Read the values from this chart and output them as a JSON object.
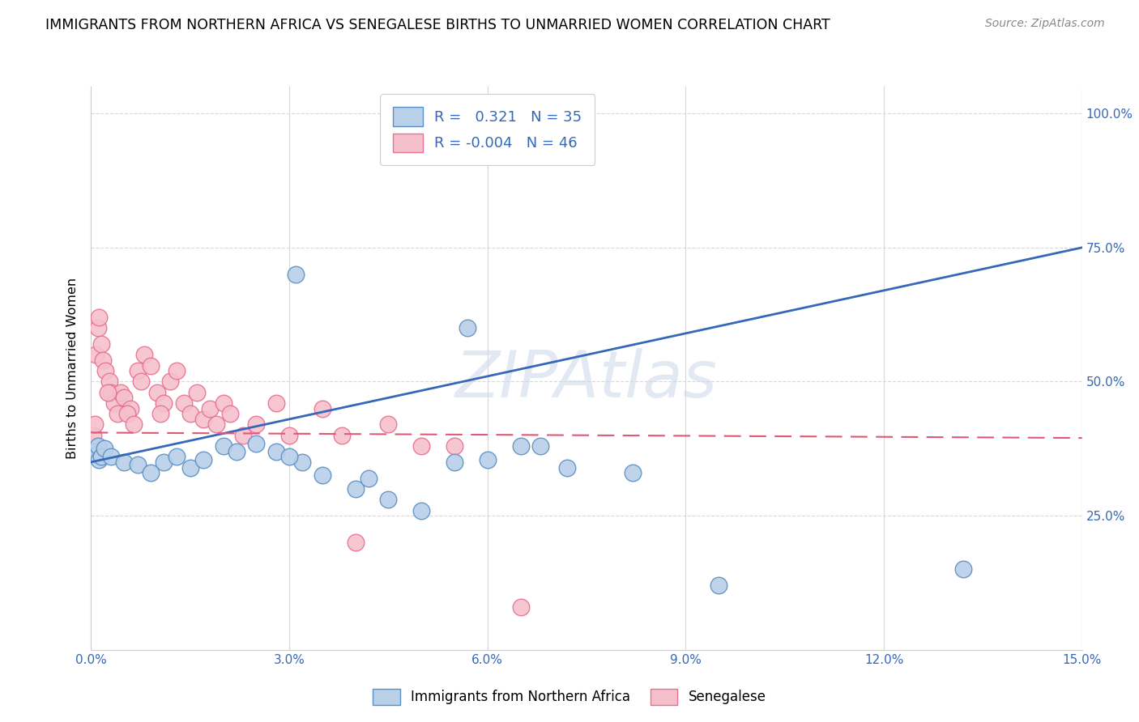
{
  "title": "IMMIGRANTS FROM NORTHERN AFRICA VS SENEGALESE BIRTHS TO UNMARRIED WOMEN CORRELATION CHART",
  "source": "Source: ZipAtlas.com",
  "ylabel": "Births to Unmarried Women",
  "x_tick_vals": [
    0.0,
    3.0,
    6.0,
    9.0,
    12.0,
    15.0
  ],
  "y_tick_vals": [
    25.0,
    50.0,
    75.0,
    100.0
  ],
  "xlim": [
    0.0,
    15.0
  ],
  "ylim": [
    0.0,
    105.0
  ],
  "legend_labels": [
    "Immigrants from Northern Africa",
    "Senegalese"
  ],
  "R_blue": 0.321,
  "N_blue": 35,
  "R_pink": -0.004,
  "N_pink": 46,
  "blue_color": "#b8d0e8",
  "blue_edge_color": "#5b8fc4",
  "blue_line_color": "#3568b8",
  "pink_color": "#f5c0cc",
  "pink_edge_color": "#e87090",
  "pink_line_color": "#e05878",
  "background_color": "#ffffff",
  "grid_color": "#d8d8d8",
  "watermark": "ZIPAtlas",
  "watermark_color": "#ccd8e8",
  "title_fontsize": 12.5,
  "source_fontsize": 10,
  "blue_trend_y0": 35.0,
  "blue_trend_y1": 75.0,
  "pink_trend_y0": 40.5,
  "pink_trend_y1": 39.5,
  "blue_scatter_x": [
    0.05,
    0.08,
    0.1,
    0.12,
    0.15,
    0.2,
    0.3,
    0.5,
    0.7,
    0.9,
    1.1,
    1.3,
    1.5,
    1.7,
    2.0,
    2.2,
    2.5,
    2.8,
    3.2,
    3.5,
    4.0,
    4.5,
    5.0,
    5.5,
    6.0,
    6.5,
    7.2,
    8.2,
    3.0,
    4.2,
    6.8,
    3.1,
    5.7,
    13.2,
    9.5
  ],
  "blue_scatter_y": [
    37.0,
    36.5,
    38.0,
    35.5,
    36.0,
    37.5,
    36.0,
    35.0,
    34.5,
    33.0,
    35.0,
    36.0,
    34.0,
    35.5,
    38.0,
    37.0,
    38.5,
    37.0,
    35.0,
    32.5,
    30.0,
    28.0,
    26.0,
    35.0,
    35.5,
    38.0,
    34.0,
    33.0,
    36.0,
    32.0,
    38.0,
    70.0,
    60.0,
    15.0,
    12.0
  ],
  "pink_scatter_x": [
    0.03,
    0.05,
    0.07,
    0.1,
    0.12,
    0.15,
    0.18,
    0.22,
    0.28,
    0.3,
    0.35,
    0.4,
    0.45,
    0.5,
    0.6,
    0.7,
    0.75,
    0.8,
    0.9,
    1.0,
    1.1,
    1.2,
    1.3,
    1.4,
    1.5,
    1.6,
    1.7,
    1.8,
    1.9,
    2.0,
    2.1,
    2.3,
    2.5,
    2.8,
    3.0,
    3.5,
    4.0,
    4.5,
    5.0,
    0.25,
    0.55,
    0.65,
    1.05,
    5.5,
    3.8,
    6.5
  ],
  "pink_scatter_y": [
    40.0,
    42.0,
    55.0,
    60.0,
    62.0,
    57.0,
    54.0,
    52.0,
    50.0,
    48.0,
    46.0,
    44.0,
    48.0,
    47.0,
    45.0,
    52.0,
    50.0,
    55.0,
    53.0,
    48.0,
    46.0,
    50.0,
    52.0,
    46.0,
    44.0,
    48.0,
    43.0,
    45.0,
    42.0,
    46.0,
    44.0,
    40.0,
    42.0,
    46.0,
    40.0,
    45.0,
    20.0,
    42.0,
    38.0,
    48.0,
    44.0,
    42.0,
    44.0,
    38.0,
    40.0,
    8.0
  ]
}
